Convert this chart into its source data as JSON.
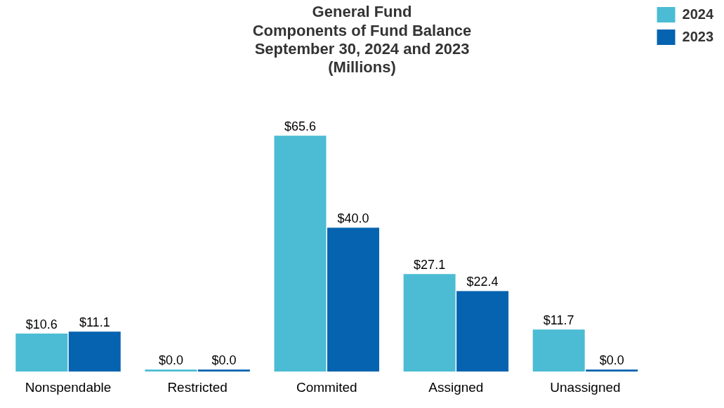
{
  "chart_data": {
    "type": "bar",
    "title": "General Fund\nComponents of Fund Balance\nSeptember 30, 2024 and 2023\n(Millions)",
    "categories": [
      "Nonspendable",
      "Restricted",
      "Commited",
      "Assigned",
      "Unassigned"
    ],
    "series": [
      {
        "name": "2024",
        "color": "#4bbcd3",
        "values": [
          10.6,
          0,
          65.6,
          27.1,
          11.7
        ],
        "value_labels": [
          "$10.6",
          "$0.0",
          "$65.6",
          "$27.1",
          "$11.7"
        ]
      },
      {
        "name": "2023",
        "color": "#0563b0",
        "values": [
          11.1,
          0,
          40.0,
          22.4,
          0
        ],
        "value_labels": [
          "$11.1",
          "$0.0",
          "$40.0",
          "$22.4",
          "$0.0"
        ]
      }
    ],
    "legend": "top right",
    "grid": false
  }
}
